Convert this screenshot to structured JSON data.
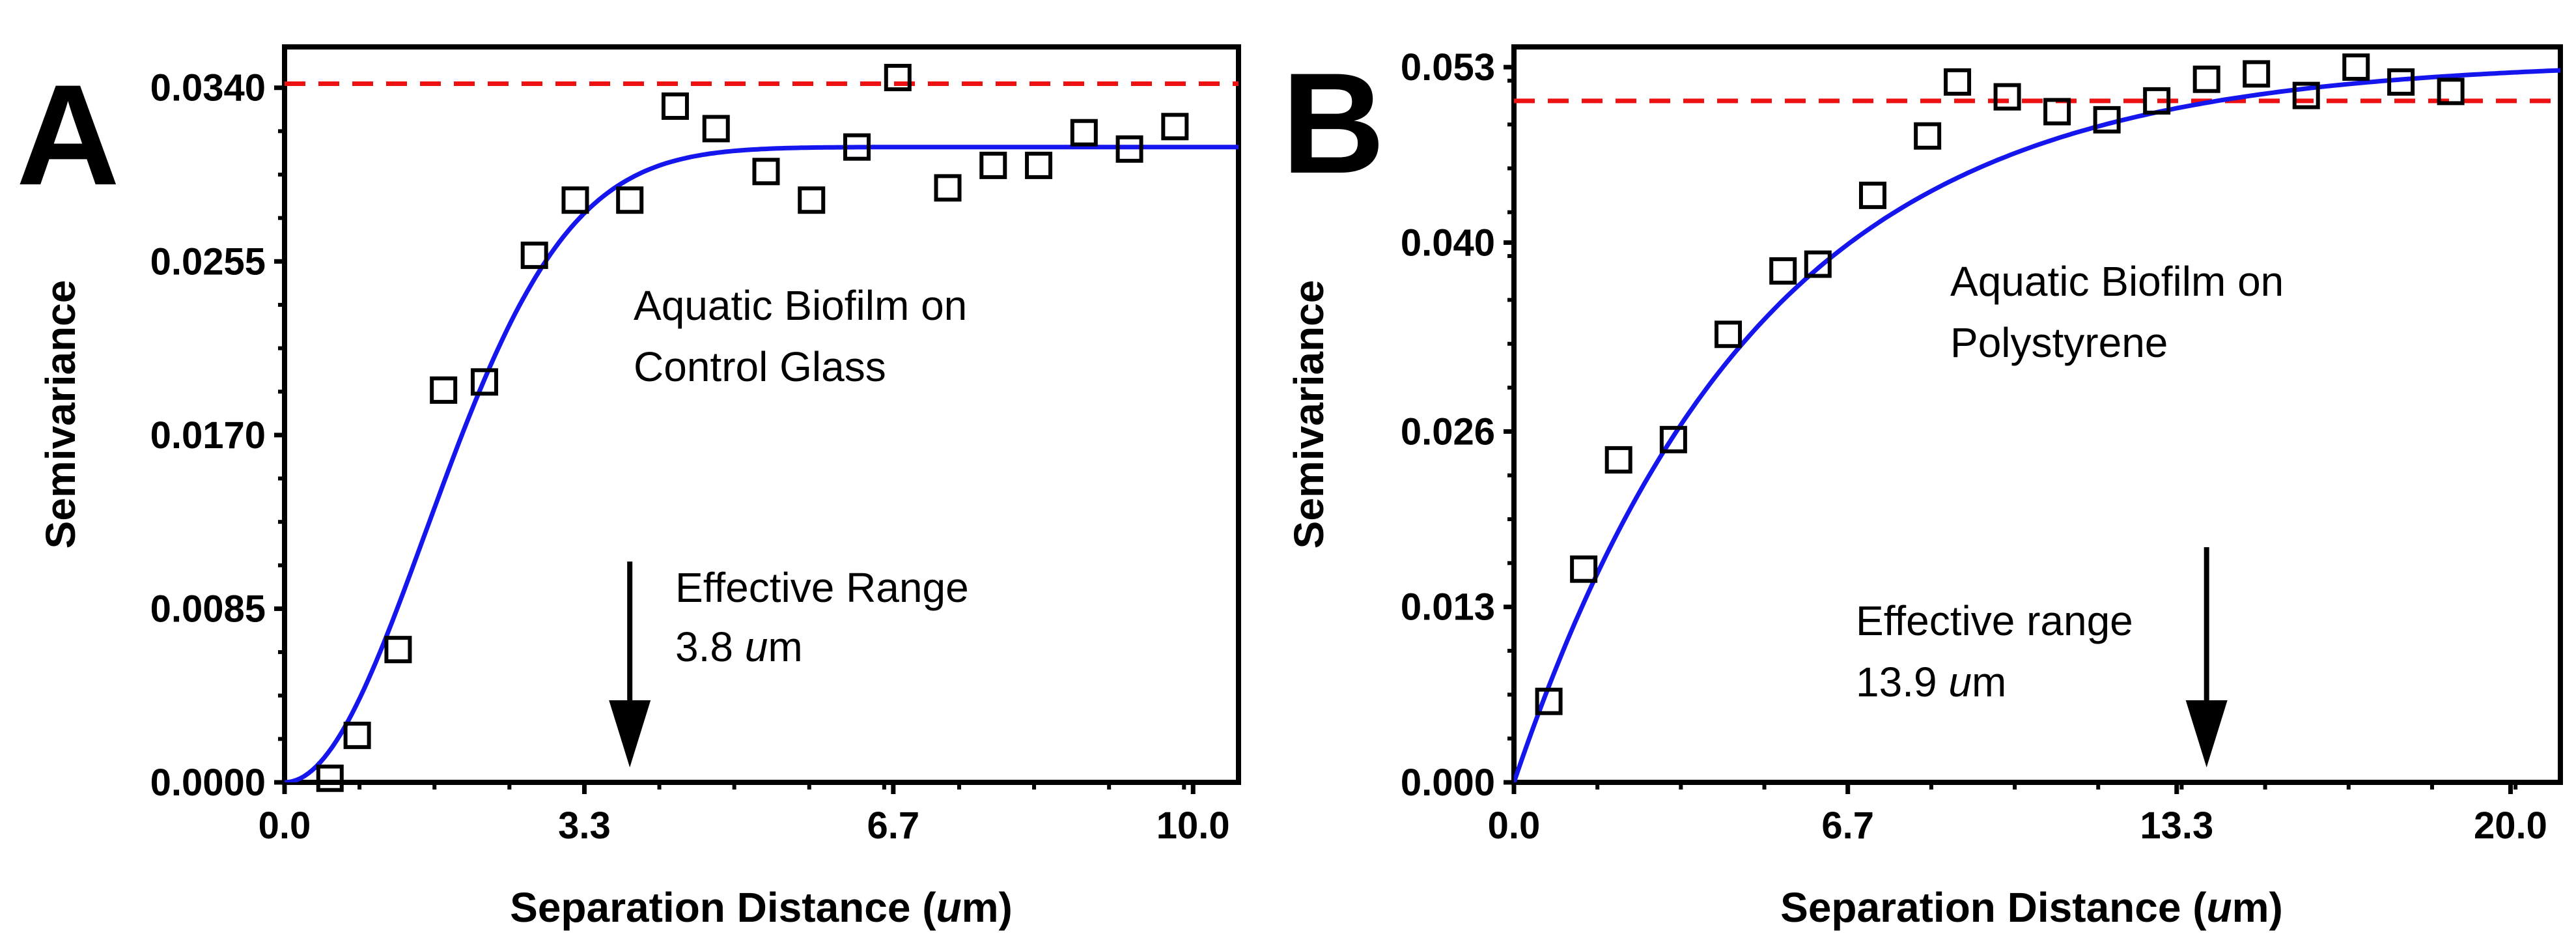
{
  "chart_data": [
    {
      "panel": "A",
      "type": "scatter",
      "xlabel": "Separation Distance (um)",
      "ylabel": "Semivariance",
      "xlim": [
        0,
        10.5
      ],
      "ylim": [
        0,
        0.036
      ],
      "xticks": [
        "0.0",
        "3.3",
        "6.7",
        "10.0"
      ],
      "xtick_values": [
        0,
        3.3,
        6.7,
        10.0
      ],
      "yticks": [
        "0.0000",
        "0.0085",
        "0.0170",
        "0.0255",
        "0.0340"
      ],
      "ytick_values": [
        0,
        0.0085,
        0.017,
        0.0255,
        0.034
      ],
      "points": {
        "x": [
          0.5,
          0.8,
          1.25,
          1.75,
          2.2,
          2.75,
          3.2,
          3.8,
          4.3,
          4.75,
          5.3,
          5.8,
          6.3,
          6.75,
          7.3,
          7.8,
          8.3,
          8.8,
          9.3,
          9.8
        ],
        "y": [
          0.0002,
          0.0023,
          0.0065,
          0.0192,
          0.0196,
          0.0258,
          0.0285,
          0.0285,
          0.0331,
          0.032,
          0.0299,
          0.0285,
          0.0311,
          0.0345,
          0.0291,
          0.0302,
          0.0302,
          0.0318,
          0.031,
          0.0321
        ]
      },
      "fit": {
        "model": "gaussian",
        "sill": 0.0311,
        "range": 3.8,
        "color": "#1515ee"
      },
      "reference_line": {
        "y": 0.0342,
        "style": "dashed",
        "color": "#ee1111"
      },
      "annotations": {
        "label_line1": "Aquatic Biofilm on",
        "label_line2": "Control Glass",
        "range_label": "Effective Range",
        "range_value": "3.8",
        "range_unit": "um",
        "arrow_x": 3.8
      }
    },
    {
      "panel": "B",
      "type": "scatter",
      "xlabel": "Separation Distance (um)",
      "ylabel": "Semivariance",
      "xlim": [
        0,
        21
      ],
      "ylim": [
        0,
        0.0545
      ],
      "xticks": [
        "0.0",
        "6.7",
        "13.3",
        "20.0"
      ],
      "xtick_values": [
        0,
        6.7,
        13.3,
        20.0
      ],
      "yticks": [
        "0.000",
        "0.013",
        "0.026",
        "0.040",
        "0.053"
      ],
      "ytick_values": [
        0,
        0.013,
        0.026,
        0.04,
        0.053
      ],
      "points": {
        "x": [
          0.7,
          1.4,
          2.1,
          3.2,
          4.3,
          5.4,
          6.1,
          7.2,
          8.3,
          8.9,
          9.9,
          10.9,
          11.9,
          12.9,
          13.9,
          14.9,
          15.9,
          16.9,
          17.8,
          18.8
        ],
        "y": [
          0.006,
          0.0158,
          0.0239,
          0.0254,
          0.0332,
          0.0379,
          0.0384,
          0.0435,
          0.0479,
          0.0519,
          0.0508,
          0.0497,
          0.0491,
          0.0505,
          0.0521,
          0.0525,
          0.0509,
          0.053,
          0.0519,
          0.0512
        ]
      },
      "fit": {
        "model": "exponential",
        "sill": 0.0535,
        "scale": 4.9,
        "color": "#1515ee"
      },
      "reference_line": {
        "y": 0.0505,
        "style": "dashed",
        "color": "#ee1111"
      },
      "annotations": {
        "label_line1": "Aquatic Biofilm on",
        "label_line2": "Polystyrene",
        "range_label": "Effective range",
        "range_value": "13.9",
        "range_unit": "um",
        "arrow_x": 13.9
      }
    }
  ],
  "panels": {
    "A": {
      "letter": "A"
    },
    "B": {
      "letter": "B"
    }
  }
}
